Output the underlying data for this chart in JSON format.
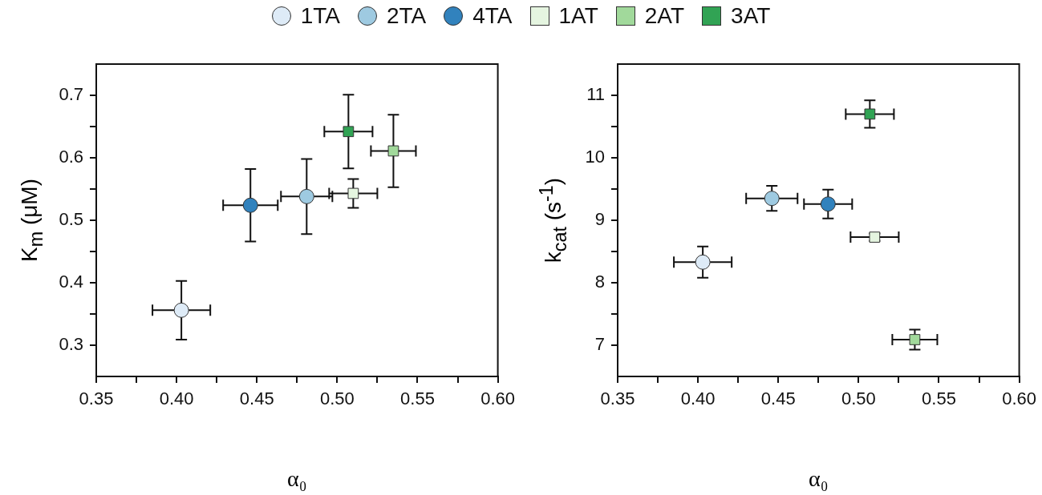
{
  "chart_data": [
    {
      "type": "scatter",
      "xlabel": "α₀",
      "ylabel": "K$_{m}$ (μM)",
      "legend": "top",
      "grid": false,
      "xlim": [
        0.35,
        0.6
      ],
      "ylim": [
        0.25,
        0.75
      ],
      "xticks": [
        {
          "value": 0.35,
          "label": "0.35"
        },
        {
          "value": 0.375,
          "label": null
        },
        {
          "value": 0.4,
          "label": "0.40"
        },
        {
          "value": 0.425,
          "label": null
        },
        {
          "value": 0.45,
          "label": "0.45"
        },
        {
          "value": 0.475,
          "label": null
        },
        {
          "value": 0.5,
          "label": "0.50"
        },
        {
          "value": 0.525,
          "label": null
        },
        {
          "value": 0.55,
          "label": "0.55"
        },
        {
          "value": 0.575,
          "label": null
        },
        {
          "value": 0.6,
          "label": "0.60"
        }
      ],
      "yticks": [
        {
          "value": 0.3,
          "label": "0.3"
        },
        {
          "value": 0.35,
          "label": null
        },
        {
          "value": 0.4,
          "label": "0.4"
        },
        {
          "value": 0.45,
          "label": null
        },
        {
          "value": 0.5,
          "label": "0.5"
        },
        {
          "value": 0.55,
          "label": null
        },
        {
          "value": 0.6,
          "label": "0.6"
        },
        {
          "value": 0.65,
          "label": null
        },
        {
          "value": 0.7,
          "label": "0.7"
        }
      ],
      "series": [
        {
          "name": "1TA",
          "color": "#deebf7",
          "marker": "circle",
          "x": [
            0.403
          ],
          "values": [
            0.356
          ],
          "errors": [
            0.047
          ],
          "xerrors": [
            0.018
          ]
        },
        {
          "name": "2TA",
          "color": "#9ecae1",
          "marker": "circle",
          "x": [
            0.481
          ],
          "values": [
            0.538
          ],
          "errors": [
            0.06
          ],
          "xerrors": [
            0.016
          ]
        },
        {
          "name": "4TA",
          "color": "#3182bd",
          "marker": "circle",
          "x": [
            0.446
          ],
          "values": [
            0.524
          ],
          "errors": [
            0.058
          ],
          "xerrors": [
            0.017
          ]
        },
        {
          "name": "1AT",
          "color": "#e5f5e0",
          "marker": "square",
          "x": [
            0.51
          ],
          "values": [
            0.543
          ],
          "errors": [
            0.023
          ],
          "xerrors": [
            0.015
          ]
        },
        {
          "name": "2AT",
          "color": "#a1d99b",
          "marker": "square",
          "x": [
            0.535
          ],
          "values": [
            0.611
          ],
          "errors": [
            0.058
          ],
          "xerrors": [
            0.014
          ]
        },
        {
          "name": "3AT",
          "color": "#31a354",
          "marker": "square",
          "x": [
            0.507
          ],
          "values": [
            0.642
          ],
          "errors": [
            0.059
          ],
          "xerrors": [
            0.015
          ]
        }
      ]
    },
    {
      "type": "scatter",
      "xlabel": "α₀",
      "ylabel": "k$_{cat}$ (s$^{-1}$)",
      "grid": false,
      "xlim": [
        0.35,
        0.6
      ],
      "ylim": [
        6.5,
        11.5
      ],
      "xticks": [
        {
          "value": 0.35,
          "label": "0.35"
        },
        {
          "value": 0.375,
          "label": null
        },
        {
          "value": 0.4,
          "label": "0.40"
        },
        {
          "value": 0.425,
          "label": null
        },
        {
          "value": 0.45,
          "label": "0.45"
        },
        {
          "value": 0.475,
          "label": null
        },
        {
          "value": 0.5,
          "label": "0.50"
        },
        {
          "value": 0.525,
          "label": null
        },
        {
          "value": 0.55,
          "label": "0.55"
        },
        {
          "value": 0.575,
          "label": null
        },
        {
          "value": 0.6,
          "label": "0.60"
        }
      ],
      "yticks": [
        7,
        {
          "value": 7.5,
          "label": null
        },
        8,
        {
          "value": 8.5,
          "label": null
        },
        9,
        {
          "value": 9.5,
          "label": null
        },
        10,
        {
          "value": 10.5,
          "label": null
        },
        11
      ],
      "series": [
        {
          "color": "#deebf7",
          "marker": "circle",
          "x": [
            0.403
          ],
          "values": [
            8.33
          ],
          "errors": [
            0.25
          ],
          "xerrors": [
            0.018
          ]
        },
        {
          "color": "#9ecae1",
          "marker": "circle",
          "x": [
            0.446
          ],
          "values": [
            9.35
          ],
          "errors": [
            0.2
          ],
          "xerrors": [
            0.016
          ]
        },
        {
          "color": "#3182bd",
          "marker": "circle",
          "x": [
            0.481
          ],
          "values": [
            9.26
          ],
          "errors": [
            0.23
          ],
          "xerrors": [
            0.015
          ]
        },
        {
          "color": "#e5f5e0",
          "marker": "square",
          "x": [
            0.51
          ],
          "values": [
            8.73
          ],
          "errors": [
            0.06
          ],
          "xerrors": [
            0.015
          ]
        },
        {
          "color": "#a1d99b",
          "marker": "square",
          "x": [
            0.535
          ],
          "values": [
            7.09
          ],
          "errors": [
            0.16
          ],
          "xerrors": [
            0.014
          ]
        },
        {
          "color": "#31a354",
          "marker": "square",
          "x": [
            0.507
          ],
          "values": [
            10.7
          ],
          "errors": [
            0.22
          ],
          "xerrors": [
            0.015
          ]
        }
      ]
    }
  ]
}
